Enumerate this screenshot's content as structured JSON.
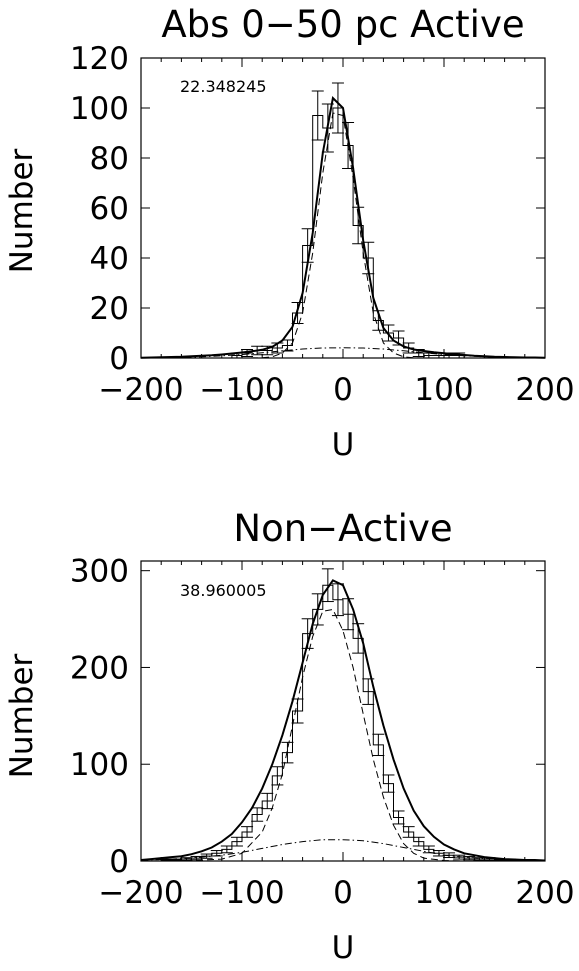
{
  "chart_data": [
    {
      "type": "histogram",
      "title": "Abs 0−50   pc Active",
      "xlabel": "U",
      "ylabel": "Number",
      "annotation": "22.348245",
      "xlim": [
        -200,
        200
      ],
      "ylim": [
        0,
        120
      ],
      "xticks": [
        -200,
        -100,
        0,
        100,
        200
      ],
      "yticks": [
        0,
        20,
        40,
        60,
        80,
        100,
        120
      ],
      "xtick_labels": [
        "−200",
        "−100",
        "0",
        "100",
        "200"
      ],
      "ytick_labels": [
        "0",
        "20",
        "40",
        "60",
        "80",
        "100",
        "120"
      ],
      "bin_width": 10,
      "bins": [
        {
          "x": -195,
          "count": 0,
          "err": 0
        },
        {
          "x": -185,
          "count": 0,
          "err": 0
        },
        {
          "x": -175,
          "count": 0,
          "err": 0
        },
        {
          "x": -165,
          "count": 0,
          "err": 0
        },
        {
          "x": -155,
          "count": 0,
          "err": 0
        },
        {
          "x": -145,
          "count": 0,
          "err": 0
        },
        {
          "x": -135,
          "count": 0,
          "err": 0
        },
        {
          "x": -125,
          "count": 0,
          "err": 0
        },
        {
          "x": -115,
          "count": 0,
          "err": 0
        },
        {
          "x": -105,
          "count": 1,
          "err": 1
        },
        {
          "x": -95,
          "count": 2,
          "err": 1.4
        },
        {
          "x": -85,
          "count": 3,
          "err": 1.7
        },
        {
          "x": -75,
          "count": 3,
          "err": 1.7
        },
        {
          "x": -65,
          "count": 4,
          "err": 2
        },
        {
          "x": -55,
          "count": 5,
          "err": 2.2
        },
        {
          "x": -45,
          "count": 18,
          "err": 4.2
        },
        {
          "x": -35,
          "count": 45,
          "err": 6.7
        },
        {
          "x": -25,
          "count": 97,
          "err": 9.8
        },
        {
          "x": -15,
          "count": 92,
          "err": 9.6
        },
        {
          "x": -5,
          "count": 100,
          "err": 10
        },
        {
          "x": 5,
          "count": 85,
          "err": 9.2
        },
        {
          "x": 15,
          "count": 53,
          "err": 7.3
        },
        {
          "x": 25,
          "count": 40,
          "err": 6.3
        },
        {
          "x": 35,
          "count": 15,
          "err": 3.9
        },
        {
          "x": 45,
          "count": 10,
          "err": 3.2
        },
        {
          "x": 55,
          "count": 8,
          "err": 2.8
        },
        {
          "x": 65,
          "count": 4,
          "err": 2
        },
        {
          "x": 75,
          "count": 2,
          "err": 1.4
        },
        {
          "x": 85,
          "count": 1,
          "err": 1
        },
        {
          "x": 95,
          "count": 1,
          "err": 1
        },
        {
          "x": 105,
          "count": 1,
          "err": 1
        },
        {
          "x": 115,
          "count": 1,
          "err": 1
        },
        {
          "x": 125,
          "count": 0,
          "err": 0
        },
        {
          "x": 135,
          "count": 0,
          "err": 0
        },
        {
          "x": 145,
          "count": 0,
          "err": 0
        },
        {
          "x": 155,
          "count": 0,
          "err": 0
        },
        {
          "x": 165,
          "count": 0,
          "err": 0
        }
      ],
      "series": [
        {
          "style": "solid",
          "x": [
            -200,
            -190,
            -180,
            -170,
            -160,
            -150,
            -140,
            -130,
            -120,
            -110,
            -100,
            -90,
            -80,
            -70,
            -60,
            -50,
            -40,
            -30,
            -20,
            -10,
            0,
            10,
            20,
            30,
            40,
            50,
            60,
            70,
            80,
            90,
            100,
            110,
            120,
            130,
            140,
            150,
            160,
            170,
            180,
            190,
            200
          ],
          "y": [
            0.1,
            0.2,
            0.3,
            0.4,
            0.5,
            0.7,
            0.9,
            1.1,
            1.4,
            1.8,
            2.2,
            2.7,
            3.3,
            4.5,
            7,
            12.5,
            26,
            50,
            82,
            104,
            100,
            76,
            47,
            24,
            12,
            7,
            4.6,
            3.4,
            2.8,
            2.3,
            1.9,
            1.5,
            1.2,
            0.9,
            0.7,
            0.5,
            0.4,
            0.3,
            0.2,
            0.2,
            0.1
          ]
        },
        {
          "style": "dashed",
          "x": [
            -200,
            -150,
            -100,
            -80,
            -70,
            -60,
            -50,
            -40,
            -30,
            -20,
            -10,
            0,
            10,
            20,
            30,
            40,
            50,
            60,
            70,
            80,
            100,
            150,
            200
          ],
          "y": [
            0,
            0,
            0,
            0.1,
            0.5,
            2,
            6,
            18,
            42,
            74,
            98,
            97,
            72,
            42,
            18,
            6,
            2,
            0.5,
            0.1,
            0,
            0,
            0,
            0
          ]
        },
        {
          "style": "dashdot",
          "x": [
            -200,
            -180,
            -160,
            -140,
            -120,
            -100,
            -80,
            -60,
            -40,
            -20,
            0,
            20,
            40,
            60,
            80,
            100,
            120,
            140,
            160,
            180,
            200
          ],
          "y": [
            0.1,
            0.2,
            0.3,
            0.5,
            0.9,
            1.4,
            2.1,
            2.9,
            3.6,
            4.0,
            4.1,
            4.0,
            3.6,
            2.9,
            2.1,
            1.4,
            0.9,
            0.5,
            0.3,
            0.2,
            0.1
          ]
        }
      ]
    },
    {
      "type": "histogram",
      "title": "Non−Active",
      "xlabel": "U",
      "ylabel": "Number",
      "annotation": "38.960005",
      "xlim": [
        -200,
        200
      ],
      "ylim": [
        0,
        310
      ],
      "xticks": [
        -200,
        -100,
        0,
        100,
        200
      ],
      "yticks": [
        0,
        100,
        200,
        300
      ],
      "xtick_labels": [
        "−200",
        "−100",
        "0",
        "100",
        "200"
      ],
      "ytick_labels": [
        "0",
        "100",
        "200",
        "300"
      ],
      "bin_width": 10,
      "bins": [
        {
          "x": -195,
          "count": 0,
          "err": 0
        },
        {
          "x": -185,
          "count": 0,
          "err": 0
        },
        {
          "x": -175,
          "count": 1,
          "err": 1
        },
        {
          "x": -165,
          "count": 1,
          "err": 1
        },
        {
          "x": -155,
          "count": 2,
          "err": 1.4
        },
        {
          "x": -145,
          "count": 3,
          "err": 1.7
        },
        {
          "x": -135,
          "count": 5,
          "err": 2.2
        },
        {
          "x": -125,
          "count": 8,
          "err": 2.8
        },
        {
          "x": -115,
          "count": 12,
          "err": 3.5
        },
        {
          "x": -105,
          "count": 20,
          "err": 4.5
        },
        {
          "x": -95,
          "count": 30,
          "err": 5.5
        },
        {
          "x": -85,
          "count": 48,
          "err": 6.9
        },
        {
          "x": -75,
          "count": 62,
          "err": 7.9
        },
        {
          "x": -65,
          "count": 88,
          "err": 9.4
        },
        {
          "x": -55,
          "count": 112,
          "err": 10.6
        },
        {
          "x": -45,
          "count": 155,
          "err": 12.4
        },
        {
          "x": -35,
          "count": 235,
          "err": 15.3
        },
        {
          "x": -25,
          "count": 260,
          "err": 16.1
        },
        {
          "x": -15,
          "count": 285,
          "err": 16.9
        },
        {
          "x": -5,
          "count": 270,
          "err": 16.4
        },
        {
          "x": 5,
          "count": 255,
          "err": 16
        },
        {
          "x": 15,
          "count": 230,
          "err": 15.2
        },
        {
          "x": 25,
          "count": 175,
          "err": 13.2
        },
        {
          "x": 35,
          "count": 120,
          "err": 11
        },
        {
          "x": 45,
          "count": 80,
          "err": 8.9
        },
        {
          "x": 55,
          "count": 45,
          "err": 6.7
        },
        {
          "x": 65,
          "count": 30,
          "err": 5.5
        },
        {
          "x": 75,
          "count": 20,
          "err": 4.5
        },
        {
          "x": 85,
          "count": 12,
          "err": 3.5
        },
        {
          "x": 95,
          "count": 8,
          "err": 2.8
        },
        {
          "x": 105,
          "count": 6,
          "err": 2.4
        },
        {
          "x": 115,
          "count": 4,
          "err": 2
        },
        {
          "x": 125,
          "count": 3,
          "err": 1.7
        },
        {
          "x": 135,
          "count": 2,
          "err": 1.4
        },
        {
          "x": 145,
          "count": 2,
          "err": 1.4
        },
        {
          "x": 155,
          "count": 1,
          "err": 1
        },
        {
          "x": 165,
          "count": 1,
          "err": 1
        }
      ],
      "series": [
        {
          "style": "solid",
          "x": [
            -200,
            -190,
            -180,
            -170,
            -160,
            -150,
            -140,
            -130,
            -120,
            -110,
            -100,
            -90,
            -80,
            -70,
            -60,
            -50,
            -40,
            -30,
            -20,
            -10,
            0,
            10,
            20,
            30,
            40,
            50,
            60,
            70,
            80,
            90,
            100,
            110,
            120,
            130,
            140,
            150,
            160,
            170,
            180,
            190,
            200
          ],
          "y": [
            1,
            2,
            3,
            4,
            5,
            7,
            10,
            14,
            20,
            28,
            40,
            55,
            75,
            100,
            130,
            165,
            205,
            245,
            275,
            290,
            285,
            260,
            225,
            180,
            140,
            105,
            75,
            52,
            36,
            25,
            17,
            12,
            8,
            6,
            4,
            3,
            2,
            1.5,
            1,
            1,
            0.5
          ]
        },
        {
          "style": "dashed",
          "x": [
            -200,
            -150,
            -120,
            -100,
            -80,
            -70,
            -60,
            -50,
            -40,
            -30,
            -20,
            -10,
            0,
            10,
            20,
            30,
            40,
            50,
            60,
            70,
            80,
            100,
            120,
            150,
            200
          ],
          "y": [
            0,
            0.5,
            2,
            8,
            30,
            55,
            90,
            140,
            190,
            232,
            258,
            260,
            238,
            200,
            152,
            105,
            66,
            37,
            18,
            8,
            3,
            0.5,
            0,
            0,
            0
          ]
        },
        {
          "style": "dashdot",
          "x": [
            -200,
            -180,
            -160,
            -140,
            -120,
            -100,
            -80,
            -60,
            -40,
            -20,
            0,
            20,
            40,
            60,
            80,
            100,
            120,
            140,
            160,
            180,
            200
          ],
          "y": [
            1,
            1.5,
            2.5,
            4,
            6,
            9,
            13,
            17,
            20,
            22,
            22,
            21,
            18,
            14,
            10,
            6,
            4,
            2.5,
            1.5,
            1,
            0.5
          ]
        }
      ]
    }
  ]
}
